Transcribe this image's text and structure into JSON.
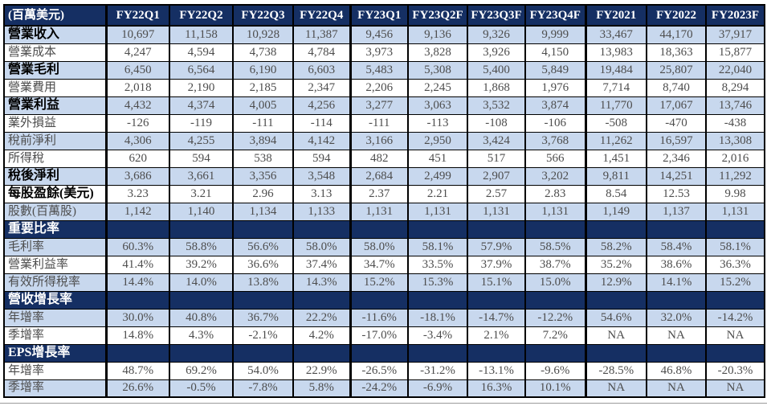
{
  "table": {
    "unit_label": "(百萬美元)",
    "columns": [
      "FY22Q1",
      "FY22Q2",
      "FY22Q3",
      "FY22Q4",
      "FY23Q1",
      "FY23Q2F",
      "FY23Q3F",
      "FY23Q4F",
      "FY2021",
      "FY2022",
      "FY2023F"
    ],
    "rows": [
      {
        "label": "營業收入",
        "bg": "blue",
        "bold": true,
        "section": false,
        "values": [
          "10,697",
          "11,158",
          "10,928",
          "11,387",
          "9,456",
          "9,136",
          "9,326",
          "9,999",
          "33,467",
          "44,170",
          "37,917"
        ]
      },
      {
        "label": "營業成本",
        "bg": "white",
        "bold": false,
        "section": false,
        "values": [
          "4,247",
          "4,594",
          "4,738",
          "4,784",
          "3,973",
          "3,828",
          "3,926",
          "4,150",
          "13,983",
          "18,363",
          "15,877"
        ]
      },
      {
        "label": "營業毛利",
        "bg": "blue",
        "bold": true,
        "section": false,
        "values": [
          "6,450",
          "6,564",
          "6,190",
          "6,603",
          "5,483",
          "5,308",
          "5,400",
          "5,849",
          "19,484",
          "25,807",
          "22,040"
        ]
      },
      {
        "label": "營業費用",
        "bg": "white",
        "bold": false,
        "section": false,
        "values": [
          "2,018",
          "2,190",
          "2,185",
          "2,347",
          "2,206",
          "2,245",
          "1,868",
          "1,976",
          "7,714",
          "8,740",
          "8,294"
        ]
      },
      {
        "label": "營業利益",
        "bg": "blue",
        "bold": true,
        "section": false,
        "values": [
          "4,432",
          "4,374",
          "4,005",
          "4,256",
          "3,277",
          "3,063",
          "3,532",
          "3,874",
          "11,770",
          "17,067",
          "13,746"
        ]
      },
      {
        "label": "業外損益",
        "bg": "white",
        "bold": false,
        "section": false,
        "values": [
          "-126",
          "-119",
          "-111",
          "-114",
          "-111",
          "-113",
          "-108",
          "-106",
          "-508",
          "-470",
          "-438"
        ]
      },
      {
        "label": "稅前淨利",
        "bg": "blue",
        "bold": false,
        "section": false,
        "values": [
          "4,306",
          "4,255",
          "3,894",
          "4,142",
          "3,166",
          "2,950",
          "3,424",
          "3,768",
          "11,262",
          "16,597",
          "13,308"
        ]
      },
      {
        "label": "所得稅",
        "bg": "white",
        "bold": false,
        "section": false,
        "values": [
          "620",
          "594",
          "538",
          "594",
          "482",
          "451",
          "517",
          "566",
          "1,451",
          "2,346",
          "2,016"
        ]
      },
      {
        "label": "稅後淨利",
        "bg": "blue",
        "bold": true,
        "section": false,
        "values": [
          "3,686",
          "3,661",
          "3,356",
          "3,548",
          "2,684",
          "2,499",
          "2,907",
          "3,202",
          "9,811",
          "14,251",
          "11,292"
        ]
      },
      {
        "label": "每股盈餘(美元)",
        "bg": "white",
        "bold": true,
        "section": false,
        "values": [
          "3.23",
          "3.21",
          "2.96",
          "3.13",
          "2.37",
          "2.21",
          "2.57",
          "2.83",
          "8.54",
          "12.53",
          "9.98"
        ]
      },
      {
        "label": "股數(百萬股)",
        "bg": "blue",
        "bold": false,
        "section": false,
        "values": [
          "1,142",
          "1,140",
          "1,134",
          "1,133",
          "1,131",
          "1,131",
          "1,131",
          "1,131",
          "1,149",
          "1,137",
          "1,131"
        ]
      },
      {
        "label": "重要比率",
        "bg": "navy",
        "bold": true,
        "section": true,
        "values": []
      },
      {
        "label": "毛利率",
        "bg": "blue",
        "bold": false,
        "section": false,
        "values": [
          "60.3%",
          "58.8%",
          "56.6%",
          "58.0%",
          "58.0%",
          "58.1%",
          "57.9%",
          "58.5%",
          "58.2%",
          "58.4%",
          "58.1%"
        ]
      },
      {
        "label": "營業利益率",
        "bg": "white",
        "bold": false,
        "section": false,
        "values": [
          "41.4%",
          "39.2%",
          "36.6%",
          "37.4%",
          "34.7%",
          "33.5%",
          "37.9%",
          "38.7%",
          "35.2%",
          "38.6%",
          "36.3%"
        ]
      },
      {
        "label": "有效所得稅率",
        "bg": "blue",
        "bold": false,
        "section": false,
        "values": [
          "14.4%",
          "14.0%",
          "13.8%",
          "14.3%",
          "15.2%",
          "15.3%",
          "15.1%",
          "15.0%",
          "12.9%",
          "14.1%",
          "15.2%"
        ]
      },
      {
        "label": "營收增長率",
        "bg": "navy",
        "bold": true,
        "section": true,
        "values": []
      },
      {
        "label": "年增率",
        "bg": "blue",
        "bold": false,
        "section": false,
        "values": [
          "30.0%",
          "40.8%",
          "36.7%",
          "22.2%",
          "-11.6%",
          "-18.1%",
          "-14.7%",
          "-12.2%",
          "54.6%",
          "32.0%",
          "-14.2%"
        ]
      },
      {
        "label": "季增率",
        "bg": "white",
        "bold": false,
        "section": false,
        "values": [
          "14.8%",
          "4.3%",
          "-2.1%",
          "4.2%",
          "-17.0%",
          "-3.4%",
          "2.1%",
          "7.2%",
          "NA",
          "NA",
          "NA"
        ]
      },
      {
        "label": "EPS增長率",
        "bg": "navy",
        "bold": true,
        "section": true,
        "values": []
      },
      {
        "label": "年增率",
        "bg": "white",
        "bold": false,
        "section": false,
        "values": [
          "48.7%",
          "69.2%",
          "54.0%",
          "22.9%",
          "-26.5%",
          "-31.2%",
          "-13.1%",
          "-9.6%",
          "-28.5%",
          "46.8%",
          "-20.3%"
        ]
      },
      {
        "label": "季增率",
        "bg": "blue",
        "bold": false,
        "section": false,
        "values": [
          "26.6%",
          "-0.5%",
          "-7.8%",
          "5.8%",
          "-24.2%",
          "-6.9%",
          "16.3%",
          "10.1%",
          "NA",
          "NA",
          "NA"
        ]
      }
    ]
  },
  "colors": {
    "header_bg": "#152F63",
    "stripe_blue": "#C8D8EE",
    "row_white": "#FFFFFF",
    "text_plain": "#4D4D4D",
    "text_bold": "#000000",
    "border": "#000000",
    "bottom_rule": "#9A9A9A"
  }
}
